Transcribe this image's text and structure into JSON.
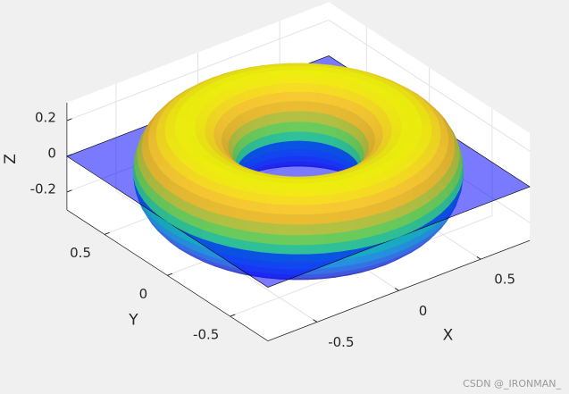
{
  "chart_data": {
    "type": "surface3d",
    "surface": "torus",
    "major_radius": 0.55,
    "minor_radius": 0.25,
    "plane_z": 0,
    "plane_color": "#0000ff",
    "colormap": "parula",
    "xlabel": "X",
    "ylabel": "Y",
    "zlabel": "Z",
    "xlim": [
      -0.8,
      0.8
    ],
    "ylim": [
      -0.8,
      0.8
    ],
    "zlim": [
      -0.3,
      0.3
    ],
    "xticks": [
      -0.5,
      0,
      0.5
    ],
    "yticks": [
      -0.5,
      0,
      0.5
    ],
    "zticks": [
      -0.2,
      0,
      0.2
    ],
    "view": [
      -37.5,
      30
    ],
    "grid": true
  },
  "watermark": "CSDN @_IRONMAN_"
}
